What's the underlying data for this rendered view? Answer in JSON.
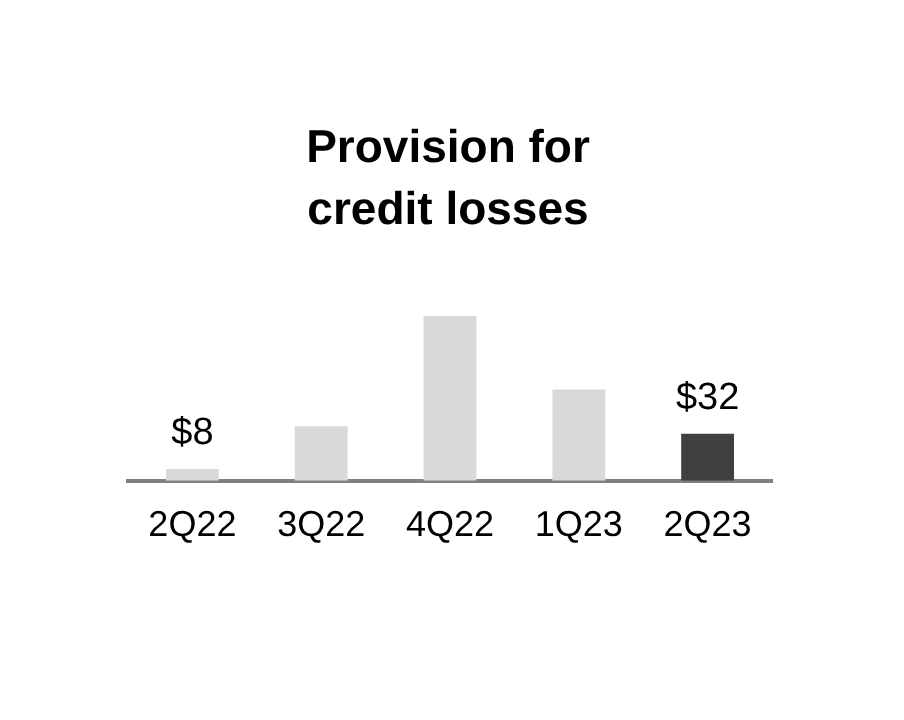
{
  "chart_data": {
    "type": "bar",
    "title": "Provision for credit losses",
    "categories": [
      "2Q22",
      "3Q22",
      "4Q22",
      "1Q23",
      "2Q23"
    ],
    "values": [
      8,
      37,
      112,
      62,
      32
    ],
    "value_labels": [
      "$8",
      null,
      null,
      null,
      "$32"
    ],
    "colors": [
      "#d9d9d9",
      "#d9d9d9",
      "#d9d9d9",
      "#d9d9d9",
      "#404040"
    ],
    "grid": false,
    "legend": false
  }
}
